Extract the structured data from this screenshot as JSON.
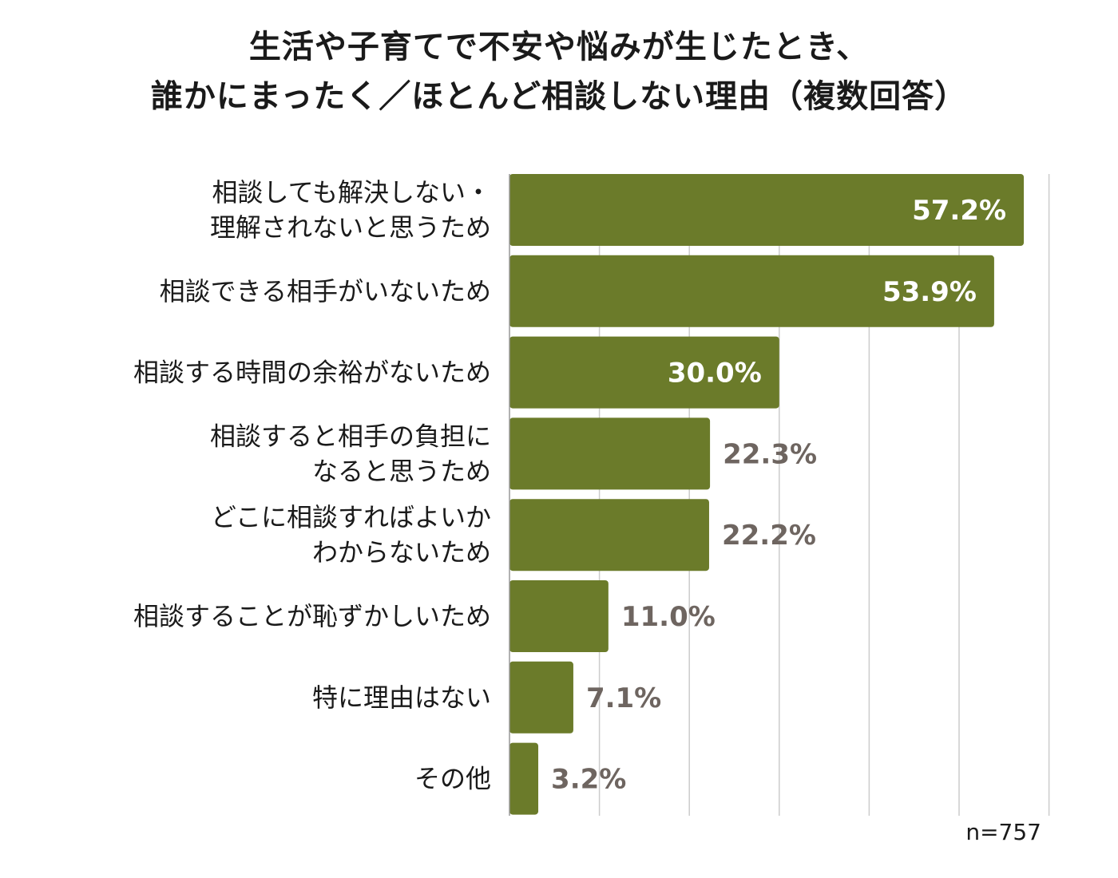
{
  "title": {
    "line1": "生活や子育てで不安や悩みが生じたとき、",
    "line2": "誰かにまったく／ほとんど相談しない理由（複数回答）"
  },
  "sample_size": "n=757",
  "colors": {
    "bar": "#6b7b2a",
    "value_inside": "#ffffff",
    "value_outside": "#6e6560",
    "grid": "#cccccc",
    "axis": "#999999"
  },
  "chart_data": {
    "type": "bar",
    "orientation": "horizontal",
    "unit": "%",
    "categories": [
      [
        "相談しても解決しない・",
        "理解されないと思うため"
      ],
      [
        "相談できる相手がいないため"
      ],
      [
        "相談する時間の余裕がないため"
      ],
      [
        "相談すると相手の負担に",
        "なると思うため"
      ],
      [
        "どこに相談すればよいか",
        "わからないため"
      ],
      [
        "相談することが恥ずかしいため"
      ],
      [
        "特に理由はない"
      ],
      [
        "その他"
      ]
    ],
    "values": [
      57.2,
      53.9,
      30.0,
      22.3,
      22.2,
      11.0,
      7.1,
      3.2
    ],
    "value_labels": [
      "57.2%",
      "53.9%",
      "30.0%",
      "22.3%",
      "22.2%",
      "11.0%",
      "7.1%",
      "3.2%"
    ],
    "xlim": [
      0,
      60
    ],
    "grid_step": 10,
    "grid": true,
    "legend": "none"
  }
}
